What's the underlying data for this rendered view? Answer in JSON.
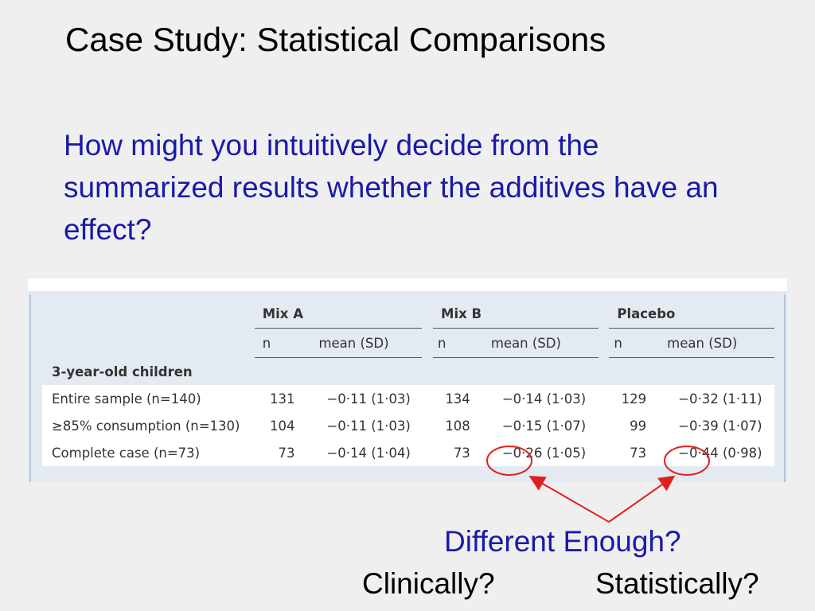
{
  "slide": {
    "title": "Case Study: Statistical Comparisons",
    "question": "How might you intuitively decide from the summarized results whether the additives have an effect?",
    "callout": "Different Enough?",
    "clinically": "Clinically?",
    "statistically": "Statistically?",
    "colors": {
      "question": "#1a1aa8",
      "highlight": "#e02020"
    }
  },
  "table": {
    "groups": [
      "Mix A",
      "Mix B",
      "Placebo"
    ],
    "subheaders": {
      "n": "n",
      "mean": "mean (SD)"
    },
    "section": "3-year-old children",
    "rows": [
      {
        "label": "Entire sample (n=140)",
        "a_n": "131",
        "a_m": "−0·11 (1·03)",
        "b_n": "134",
        "b_m": "−0·14 (1·03)",
        "p_n": "129",
        "p_m": "−0·32 (1·11)"
      },
      {
        "label": "≥85% consumption (n=130)",
        "a_n": "104",
        "a_m": "−0·11 (1·03)",
        "b_n": "108",
        "b_m": "−0·15 (1·07)",
        "p_n": "99",
        "p_m": "−0·39 (1·07)"
      },
      {
        "label": "Complete case (n=73)",
        "a_n": "73",
        "a_m": "−0·14 (1·04)",
        "b_n": "73",
        "b_m": "−0·26 (1·05)",
        "p_n": "73",
        "p_m": "−0·44 (0·98)"
      }
    ]
  }
}
